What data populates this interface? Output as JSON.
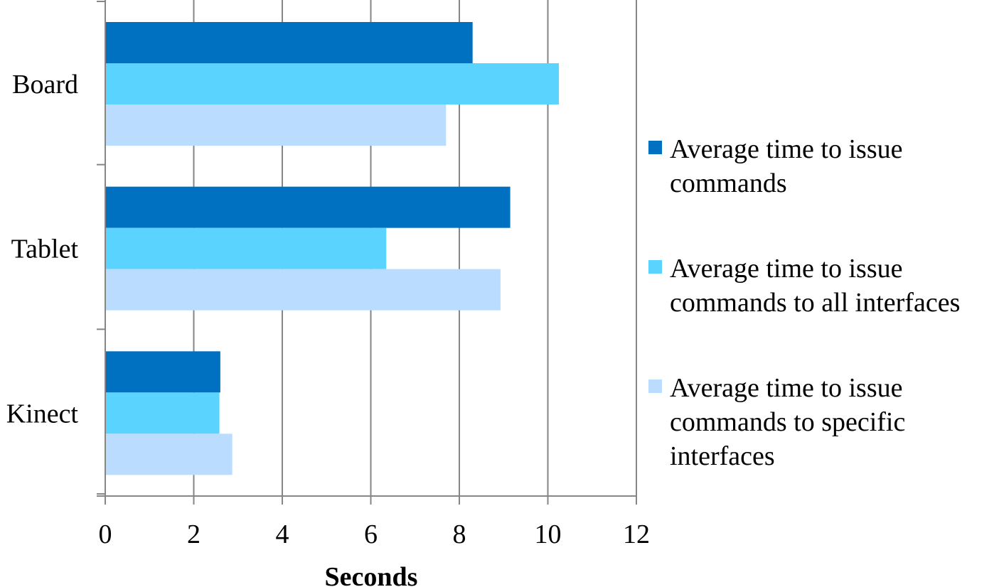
{
  "chart_data": {
    "type": "bar",
    "orientation": "horizontal",
    "categories": [
      "Board",
      "Tablet",
      "Kinect"
    ],
    "series": [
      {
        "name": "Average time to issue commands",
        "color": "#0070C0",
        "values": [
          8.3,
          9.15,
          2.6
        ]
      },
      {
        "name": "Average time to issue commands to all interfaces",
        "color": "#5BD3FF",
        "values": [
          10.25,
          6.35,
          2.58
        ]
      },
      {
        "name": "Average time to issue commands to specific interfaces",
        "color": "#BADDFF",
        "values": [
          7.7,
          8.93,
          2.87
        ]
      }
    ],
    "xlabel": "Seconds",
    "ylabel": "",
    "xlim": [
      0,
      12
    ],
    "xticks": [
      0,
      2,
      4,
      6,
      8,
      10,
      12
    ],
    "grid": true,
    "legend_position": "right"
  }
}
